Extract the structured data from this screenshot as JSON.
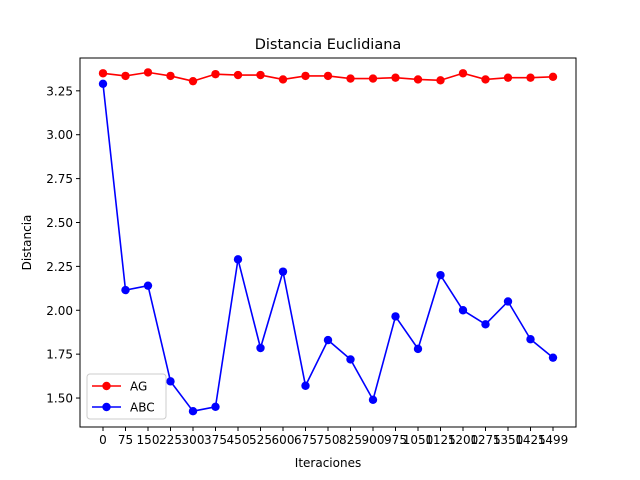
{
  "chart_data": {
    "type": "line",
    "title": "Distancia Euclidiana",
    "xlabel": "Iteraciones",
    "ylabel": "Distancia",
    "categories": [
      "0",
      "75",
      "150",
      "225",
      "300",
      "375",
      "450",
      "525",
      "600",
      "675",
      "750",
      "825",
      "900",
      "975",
      "1050",
      "1125",
      "1200",
      "1275",
      "1350",
      "1425",
      "1499"
    ],
    "ylim": [
      1.335,
      3.437
    ],
    "yticks": [
      1.5,
      1.75,
      2.0,
      2.25,
      2.5,
      2.75,
      3.0,
      3.25
    ],
    "ytick_labels": [
      "1.50",
      "1.75",
      "2.00",
      "2.25",
      "2.50",
      "2.75",
      "3.00",
      "3.25"
    ],
    "grid": false,
    "legend_position": "lower-left",
    "series": [
      {
        "name": "AG",
        "color": "#ff0000",
        "values": [
          3.35,
          3.335,
          3.355,
          3.335,
          3.305,
          3.345,
          3.34,
          3.34,
          3.315,
          3.335,
          3.335,
          3.32,
          3.32,
          3.325,
          3.315,
          3.31,
          3.35,
          3.315,
          3.325,
          3.325,
          3.33
        ]
      },
      {
        "name": "ABC",
        "color": "#0000ff",
        "values": [
          3.29,
          2.115,
          2.14,
          1.595,
          1.425,
          1.45,
          2.29,
          1.785,
          2.22,
          1.57,
          1.83,
          1.72,
          1.49,
          1.965,
          1.78,
          2.2,
          2.0,
          1.92,
          2.05,
          1.835,
          1.73
        ]
      }
    ]
  }
}
